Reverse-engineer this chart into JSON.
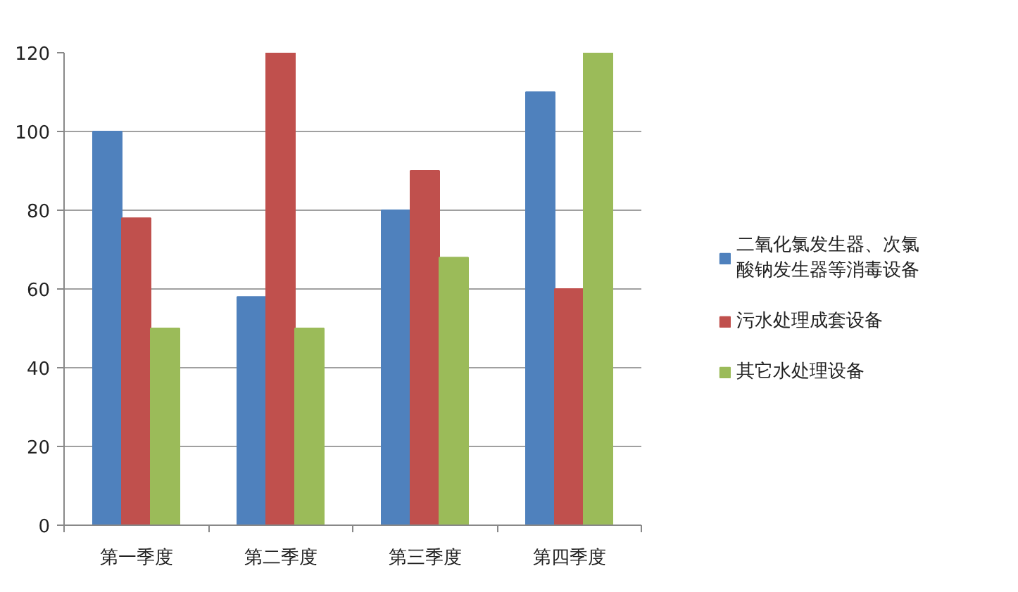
{
  "chart_data": {
    "type": "bar",
    "categories": [
      "第一季度",
      "第二季度",
      "第三季度",
      "第四季度"
    ],
    "series": [
      {
        "name": "二氧化氯发生器、次氯酸钠发生器等消毒设备",
        "color": "#4f81bd",
        "values": [
          100,
          58,
          80,
          110
        ]
      },
      {
        "name": "污水处理成套设备",
        "color": "#c0504d",
        "values": [
          78,
          120,
          90,
          60
        ]
      },
      {
        "name": "其它水处理设备",
        "color": "#9bbb59",
        "values": [
          50,
          50,
          68,
          120
        ]
      }
    ],
    "ylim": [
      0,
      120
    ],
    "yticks": [
      0,
      20,
      40,
      60,
      80,
      100,
      120
    ],
    "grid": "y",
    "legend": "right"
  }
}
